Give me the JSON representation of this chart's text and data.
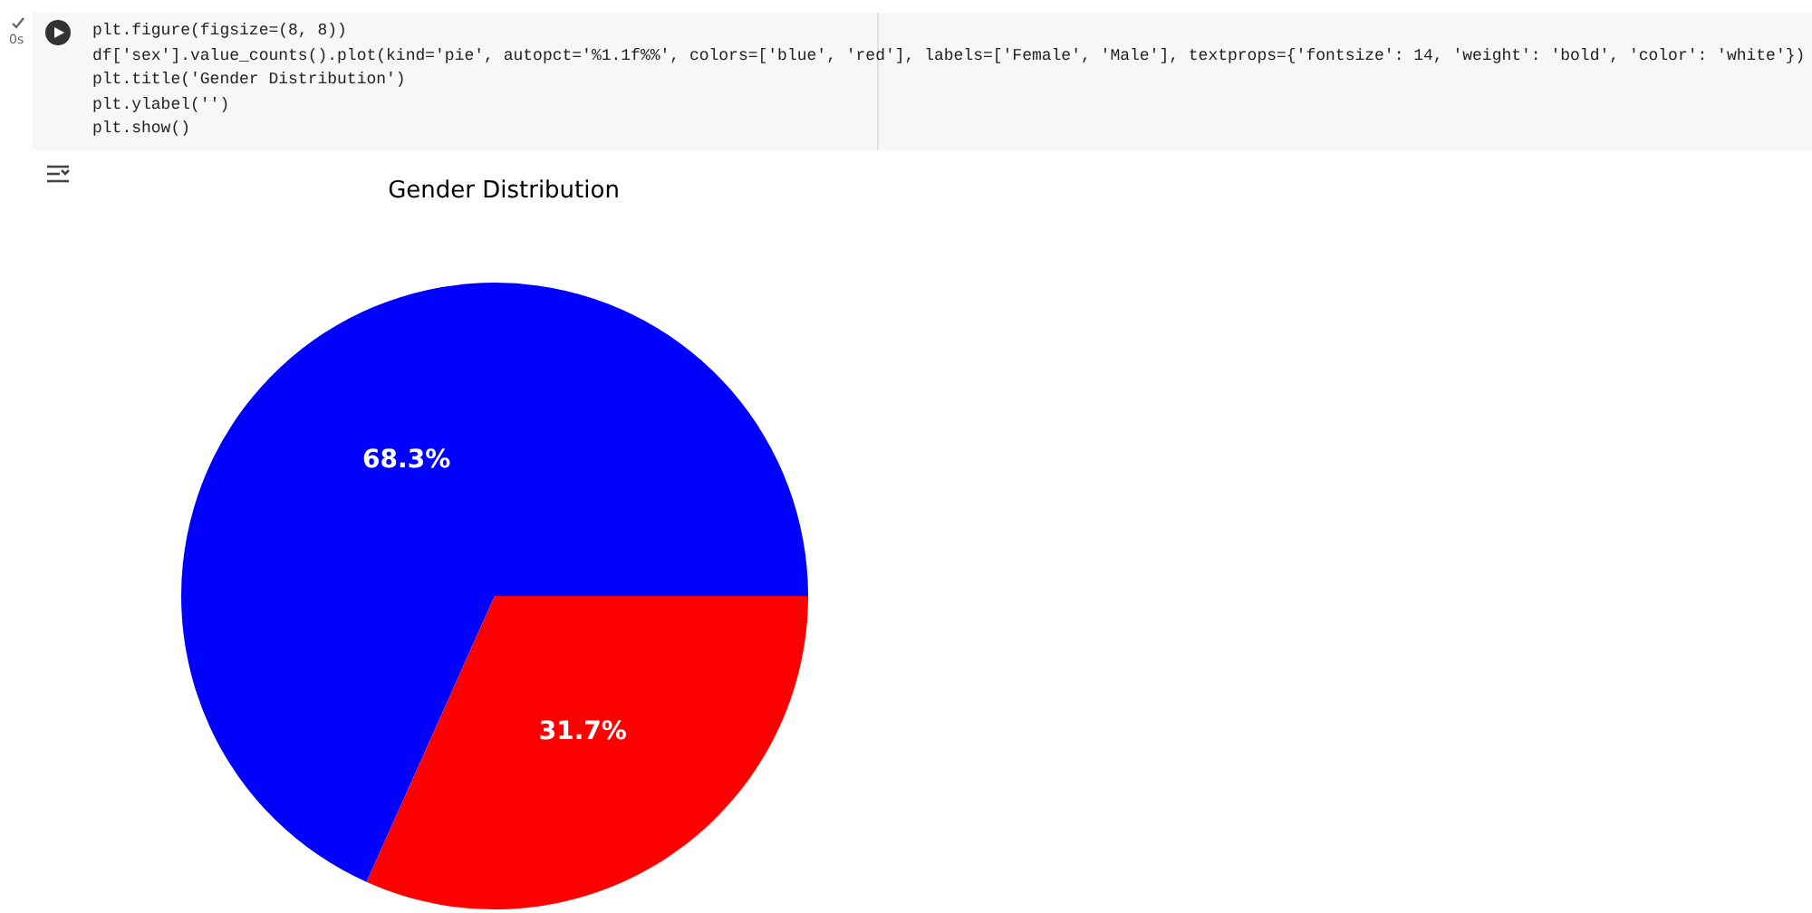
{
  "chart_data": {
    "type": "pie",
    "title": "Gender Distribution",
    "categories": [
      null,
      null
    ],
    "values": [
      68.3,
      31.7
    ],
    "colors": [
      "#0000ff",
      "#ff0000"
    ],
    "value_labels": [
      "68.3%",
      "31.7%"
    ],
    "annotations": [
      "0s",
      "plt.figure(figsize=(8, 8))",
      "df['sex'].value_counts().plot(kind='pie', autopct='%1.1f%%', colors=['blue', 'red'], labels=['Female', 'Male'], textprops={'fontsize': 14, 'weight': 'bold', 'color': 'white'})",
      "plt.title('Gender Distribution')",
      "plt.ylabel('')",
      "plt.show()"
    ]
  }
}
